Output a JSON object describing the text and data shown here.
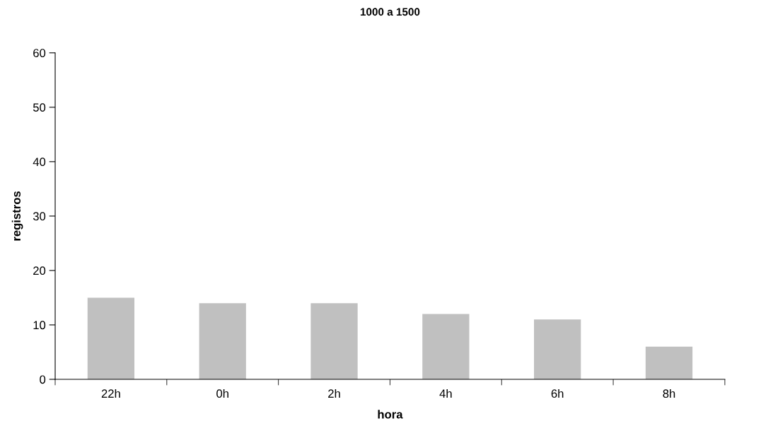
{
  "chart_data": {
    "type": "bar",
    "title": "1000 a 1500",
    "xlabel": "hora",
    "ylabel": "registros",
    "categories": [
      "22h",
      "0h",
      "2h",
      "4h",
      "6h",
      "8h"
    ],
    "values": [
      15,
      14,
      14,
      12,
      11,
      6
    ],
    "color": "#c0c0c0",
    "ylim": [
      0,
      60
    ],
    "yticks": [
      0,
      10,
      20,
      30,
      40,
      50,
      60
    ],
    "grid": false,
    "legend": false
  }
}
